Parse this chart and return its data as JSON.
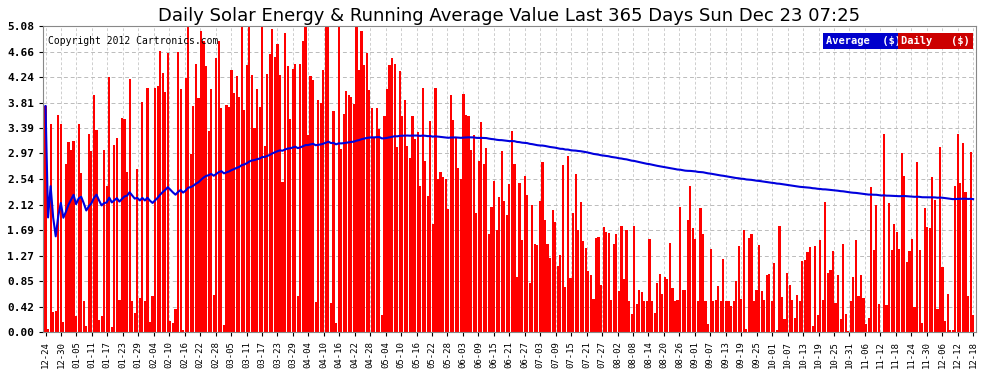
{
  "title": "Daily Solar Energy & Running Average Value Last 365 Days Sun Dec 23 07:25",
  "copyright": "Copyright 2012 Cartronics.com",
  "bar_color": "#FF0000",
  "avg_line_color": "#0000DD",
  "bg_color": "#FFFFFF",
  "plot_bg_color": "#FFFFFF",
  "grid_color": "#BBBBBB",
  "ylim": [
    0,
    5.08
  ],
  "yticks": [
    0.0,
    0.42,
    0.85,
    1.27,
    1.69,
    2.12,
    2.54,
    2.97,
    3.39,
    3.81,
    4.24,
    4.66,
    5.08
  ],
  "title_fontsize": 13,
  "n_days": 365,
  "xtick_labels": [
    "12-24",
    "12-30",
    "01-05",
    "01-11",
    "01-17",
    "01-23",
    "01-29",
    "02-04",
    "02-10",
    "02-16",
    "02-22",
    "02-28",
    "03-05",
    "03-11",
    "03-17",
    "03-23",
    "03-29",
    "04-04",
    "04-10",
    "04-16",
    "04-22",
    "04-28",
    "05-04",
    "05-10",
    "05-16",
    "05-22",
    "05-28",
    "06-03",
    "06-09",
    "06-15",
    "06-21",
    "06-27",
    "07-03",
    "07-09",
    "07-15",
    "07-21",
    "07-27",
    "08-02",
    "08-08",
    "08-14",
    "08-20",
    "08-26",
    "09-01",
    "09-07",
    "09-13",
    "09-19",
    "09-25",
    "10-01",
    "10-07",
    "10-13",
    "10-19",
    "10-25",
    "10-31",
    "11-06",
    "11-12",
    "11-18",
    "11-24",
    "11-30",
    "12-06",
    "12-12",
    "12-18"
  ]
}
